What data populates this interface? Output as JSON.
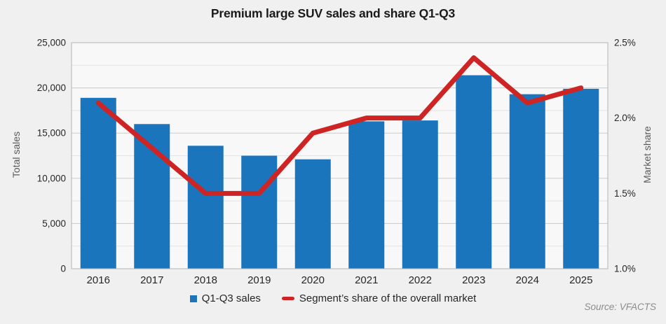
{
  "source_note": "Source: VFACTS",
  "chart_data": {
    "type": "bar",
    "subtype": "combo-bar-line-dual-axis",
    "title": "Premium large SUV sales and share Q1-Q3",
    "categories": [
      "2016",
      "2017",
      "2018",
      "2019",
      "2020",
      "2021",
      "2022",
      "2023",
      "2024",
      "2025"
    ],
    "series": [
      {
        "name": "Q1-Q3 sales",
        "type": "bar",
        "axis": "left",
        "color": "#1B75BC",
        "values": [
          18900,
          16000,
          13600,
          12500,
          12100,
          16300,
          16400,
          21400,
          19300,
          19900
        ]
      },
      {
        "name": "Segment’s share of the overall market",
        "type": "line",
        "axis": "right",
        "color": "#CE2424",
        "values": [
          2.1,
          1.8,
          1.5,
          1.5,
          1.9,
          2.0,
          2.0,
          2.4,
          2.1,
          2.2
        ]
      }
    ],
    "left_axis": {
      "label": "Total sales",
      "min": 0,
      "max": 25000,
      "major_step": 5000,
      "minor_step": 2500,
      "tick_labels": [
        "0",
        "5,000",
        "10,000",
        "15,000",
        "20,000",
        "25,000"
      ]
    },
    "right_axis": {
      "label": "Market share",
      "min": 1.0,
      "max": 2.5,
      "major_step": 0.5,
      "tick_labels": [
        "1.0%",
        "1.5%",
        "2.0%",
        "2.5%"
      ]
    },
    "x_axis": {
      "labels": [
        "2016",
        "2017",
        "2018",
        "2019",
        "2020",
        "2021",
        "2022",
        "2023",
        "2024",
        "2025"
      ]
    },
    "legend_position": "bottom-center",
    "grid": "horizontal major and minor",
    "colors": {
      "page_bg": "#F0F0F0",
      "plot_bg": "#F8F8F8",
      "major_grid": "#CBCBCB",
      "minor_grid": "#E3E3E3",
      "plot_border": "#B3B3B3",
      "tick_text": "#262626",
      "axis_title_text": "#595959",
      "title_text": "#1A1A1A"
    }
  }
}
